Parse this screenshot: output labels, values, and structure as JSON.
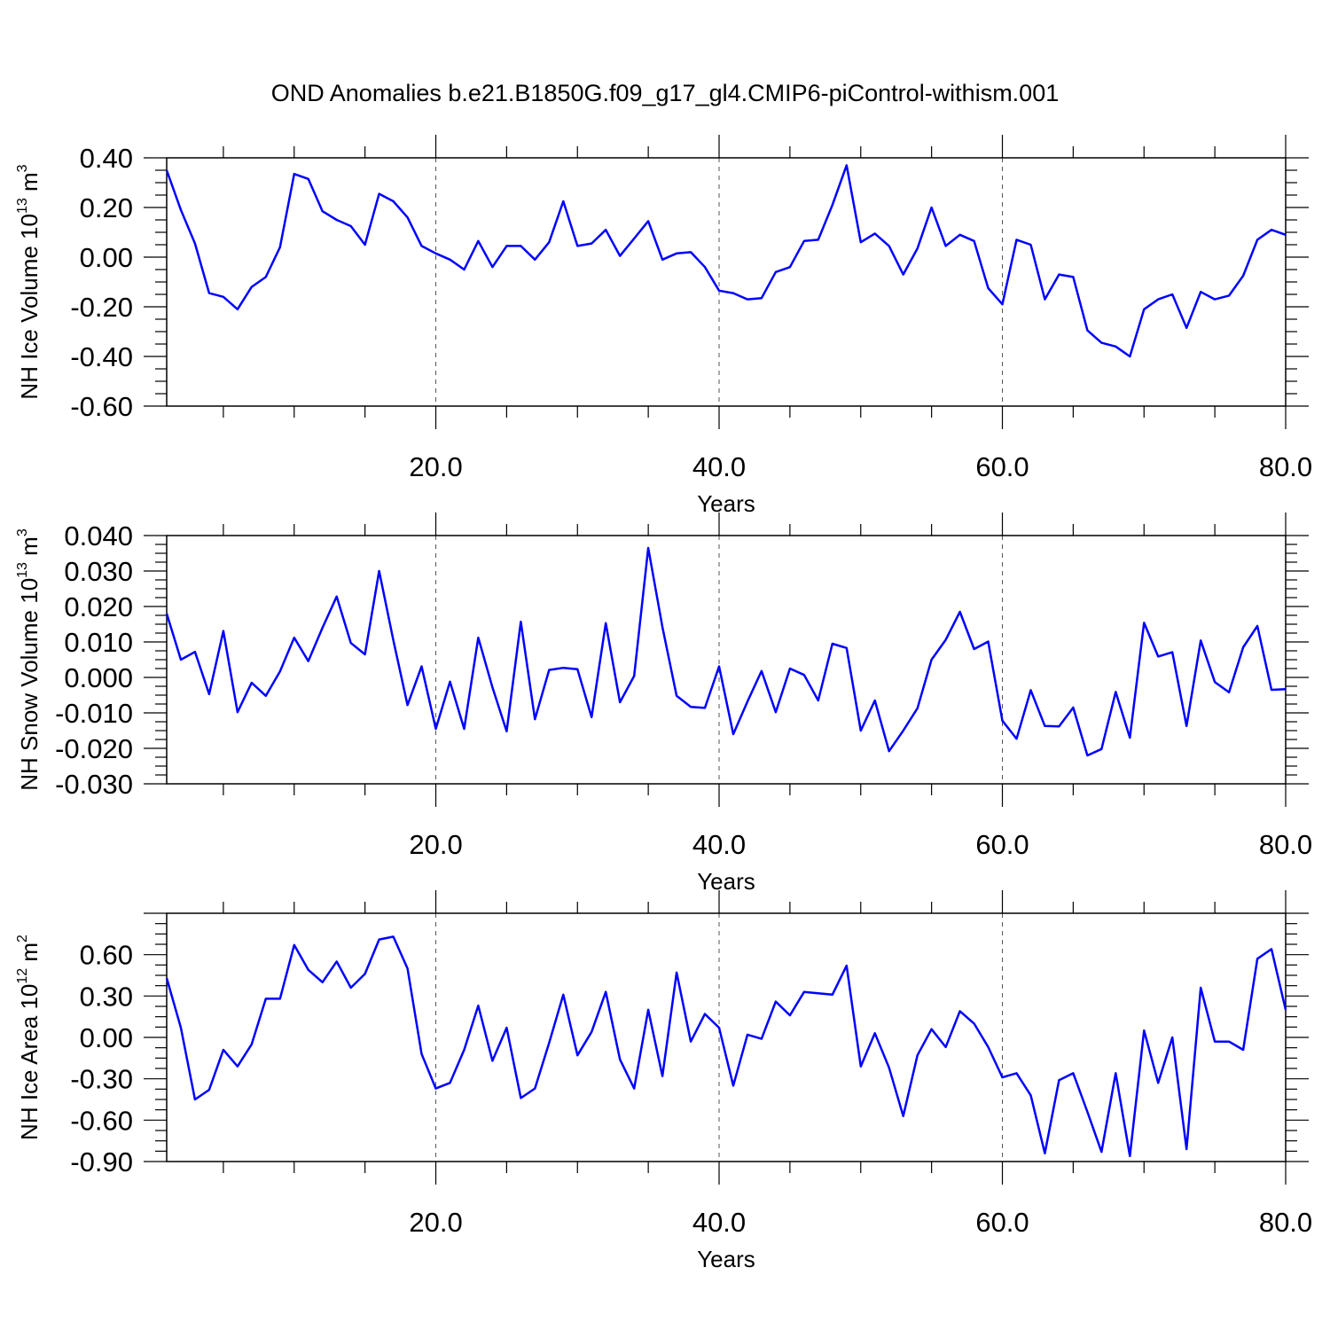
{
  "title": "OND Anomalies b.e21.B1850G.f09_g17_gl4.CMIP6-piControl-withism.001",
  "colors": {
    "line": "#0000ff",
    "axis": "#000000",
    "grid": "#555555"
  },
  "chart_data": [
    {
      "type": "line",
      "name": "ice-volume",
      "ylabel": {
        "base": "NH Ice Volume 10",
        "exp1": "13",
        "unit": " m",
        "exp2": "3"
      },
      "xlabel": "Years",
      "xlim": [
        1,
        80
      ],
      "ylim": [
        -0.6,
        0.4
      ],
      "xticks": [
        20,
        40,
        60,
        80
      ],
      "xtick_labels": [
        "20.0",
        "40.0",
        "60.0",
        "80.0"
      ],
      "yticks": [
        -0.6,
        -0.4,
        -0.2,
        0.0,
        0.2,
        0.4
      ],
      "ytick_labels": [
        "-0.60",
        "-0.40",
        "-0.20",
        "0.00",
        "0.20",
        "0.40"
      ],
      "grid": "vertical dashed at major x ticks",
      "x": [
        1,
        2,
        3,
        4,
        5,
        6,
        7,
        8,
        9,
        10,
        11,
        12,
        13,
        14,
        15,
        16,
        17,
        18,
        19,
        20,
        21,
        22,
        23,
        24,
        25,
        26,
        27,
        28,
        29,
        30,
        31,
        32,
        33,
        34,
        35,
        36,
        37,
        38,
        39,
        40,
        41,
        42,
        43,
        44,
        45,
        46,
        47,
        48,
        49,
        50,
        51,
        52,
        53,
        54,
        55,
        56,
        57,
        58,
        59,
        60,
        61,
        62,
        63,
        64,
        65,
        66,
        67,
        68,
        69,
        70,
        71,
        72,
        73,
        74,
        75,
        76,
        77,
        78,
        79,
        80
      ],
      "values": [
        0.35,
        0.19,
        0.055,
        -0.145,
        -0.16,
        -0.21,
        -0.12,
        -0.08,
        0.04,
        0.335,
        0.315,
        0.185,
        0.15,
        0.125,
        0.05,
        0.255,
        0.225,
        0.16,
        0.045,
        0.015,
        -0.01,
        -0.05,
        0.065,
        -0.04,
        0.045,
        0.045,
        -0.01,
        0.06,
        0.225,
        0.045,
        0.055,
        0.11,
        0.005,
        0.075,
        0.145,
        -0.01,
        0.015,
        0.02,
        -0.04,
        -0.135,
        -0.145,
        -0.17,
        -0.165,
        -0.06,
        -0.04,
        0.065,
        0.07,
        0.21,
        0.37,
        0.06,
        0.095,
        0.045,
        -0.07,
        0.035,
        0.2,
        0.045,
        0.09,
        0.065,
        -0.125,
        -0.19,
        0.07,
        0.05,
        -0.17,
        -0.07,
        -0.08,
        -0.295,
        -0.345,
        -0.36,
        -0.4,
        -0.21,
        -0.17,
        -0.15,
        -0.285,
        -0.14,
        -0.17,
        -0.155,
        -0.075,
        0.07,
        0.11,
        0.09
      ]
    },
    {
      "type": "line",
      "name": "snow-volume",
      "ylabel": {
        "base": "NH Snow Volume 10",
        "exp1": "13",
        "unit": " m",
        "exp2": "3"
      },
      "xlabel": "Years",
      "xlim": [
        1,
        80
      ],
      "ylim": [
        -0.03,
        0.04
      ],
      "xticks": [
        20,
        40,
        60,
        80
      ],
      "xtick_labels": [
        "20.0",
        "40.0",
        "60.0",
        "80.0"
      ],
      "yticks": [
        -0.03,
        -0.02,
        -0.01,
        0.0,
        0.01,
        0.02,
        0.03,
        0.04
      ],
      "ytick_labels": [
        "-0.030",
        "-0.020",
        "-0.010",
        "0.000",
        "0.010",
        "0.020",
        "0.030",
        "0.040"
      ],
      "grid": "vertical dashed at major x ticks",
      "x": [
        1,
        2,
        3,
        4,
        5,
        6,
        7,
        8,
        9,
        10,
        11,
        12,
        13,
        14,
        15,
        16,
        17,
        18,
        19,
        20,
        21,
        22,
        23,
        24,
        25,
        26,
        27,
        28,
        29,
        30,
        31,
        32,
        33,
        34,
        35,
        36,
        37,
        38,
        39,
        40,
        41,
        42,
        43,
        44,
        45,
        46,
        47,
        48,
        49,
        50,
        51,
        52,
        53,
        54,
        55,
        56,
        57,
        58,
        59,
        60,
        61,
        62,
        63,
        64,
        65,
        66,
        67,
        68,
        69,
        70,
        71,
        72,
        73,
        74,
        75,
        76,
        77,
        78,
        79,
        80
      ],
      "values": [
        0.018,
        0.005,
        0.0072,
        -0.0047,
        0.0131,
        -0.0098,
        -0.0015,
        -0.0052,
        0.0017,
        0.0112,
        0.0046,
        0.014,
        0.0228,
        0.0097,
        0.0065,
        0.03,
        0.0105,
        -0.0078,
        0.0031,
        -0.0145,
        -0.0012,
        -0.0145,
        0.0112,
        -0.0028,
        -0.0152,
        0.0157,
        -0.0118,
        0.0021,
        0.0027,
        0.0023,
        -0.0112,
        0.0153,
        -0.007,
        0.0004,
        0.0365,
        0.0142,
        -0.0052,
        -0.0083,
        -0.0086,
        0.0031,
        -0.016,
        -0.0068,
        0.0018,
        -0.0098,
        0.0025,
        0.0007,
        -0.0065,
        0.0095,
        0.0083,
        -0.015,
        -0.0065,
        -0.0208,
        -0.015,
        -0.0087,
        0.005,
        0.0106,
        0.0185,
        0.008,
        0.0101,
        -0.0122,
        -0.0173,
        -0.0036,
        -0.0137,
        -0.0138,
        -0.0085,
        -0.022,
        -0.0202,
        -0.0041,
        -0.017,
        0.0154,
        0.0059,
        0.0071,
        -0.0137,
        0.0104,
        -0.0013,
        -0.0042,
        0.0085,
        0.0145,
        -0.0035,
        -0.0033
      ]
    },
    {
      "type": "line",
      "name": "ice-area",
      "ylabel": {
        "base": "NH Ice Area 10",
        "exp1": "12",
        "unit": " m",
        "exp2": "2"
      },
      "xlabel": "Years",
      "xlim": [
        1,
        80
      ],
      "ylim": [
        -0.9,
        0.9
      ],
      "xticks": [
        20,
        40,
        60,
        80
      ],
      "xtick_labels": [
        "20.0",
        "40.0",
        "60.0",
        "80.0"
      ],
      "yticks": [
        -0.9,
        -0.6,
        -0.3,
        0.0,
        0.3,
        0.6
      ],
      "ytick_labels": [
        "-0.90",
        "-0.60",
        "-0.30",
        "0.00",
        "0.30",
        "0.60"
      ],
      "grid": "vertical dashed at major x ticks",
      "x": [
        1,
        2,
        3,
        4,
        5,
        6,
        7,
        8,
        9,
        10,
        11,
        12,
        13,
        14,
        15,
        16,
        17,
        18,
        19,
        20,
        21,
        22,
        23,
        24,
        25,
        26,
        27,
        28,
        29,
        30,
        31,
        32,
        33,
        34,
        35,
        36,
        37,
        38,
        39,
        40,
        41,
        42,
        43,
        44,
        45,
        46,
        47,
        48,
        49,
        50,
        51,
        52,
        53,
        54,
        55,
        56,
        57,
        58,
        59,
        60,
        61,
        62,
        63,
        64,
        65,
        66,
        67,
        68,
        69,
        70,
        71,
        72,
        73,
        74,
        75,
        76,
        77,
        78,
        79,
        80
      ],
      "values": [
        0.43,
        0.07,
        -0.45,
        -0.38,
        -0.09,
        -0.21,
        -0.05,
        0.28,
        0.28,
        0.67,
        0.49,
        0.4,
        0.55,
        0.36,
        0.46,
        0.71,
        0.73,
        0.5,
        -0.12,
        -0.37,
        -0.33,
        -0.09,
        0.23,
        -0.17,
        0.07,
        -0.44,
        -0.37,
        -0.04,
        0.31,
        -0.13,
        0.04,
        0.33,
        -0.16,
        -0.37,
        0.2,
        -0.28,
        0.47,
        -0.03,
        0.17,
        0.07,
        -0.35,
        0.02,
        -0.01,
        0.26,
        0.16,
        0.33,
        0.32,
        0.31,
        0.52,
        -0.21,
        0.03,
        -0.22,
        -0.57,
        -0.13,
        0.06,
        -0.07,
        0.19,
        0.1,
        -0.07,
        -0.29,
        -0.26,
        -0.42,
        -0.84,
        -0.31,
        -0.26,
        -0.54,
        -0.83,
        -0.26,
        -0.86,
        0.05,
        -0.33,
        0.0,
        -0.81,
        0.36,
        -0.03,
        -0.03,
        -0.09,
        0.57,
        0.64,
        0.2
      ]
    }
  ]
}
